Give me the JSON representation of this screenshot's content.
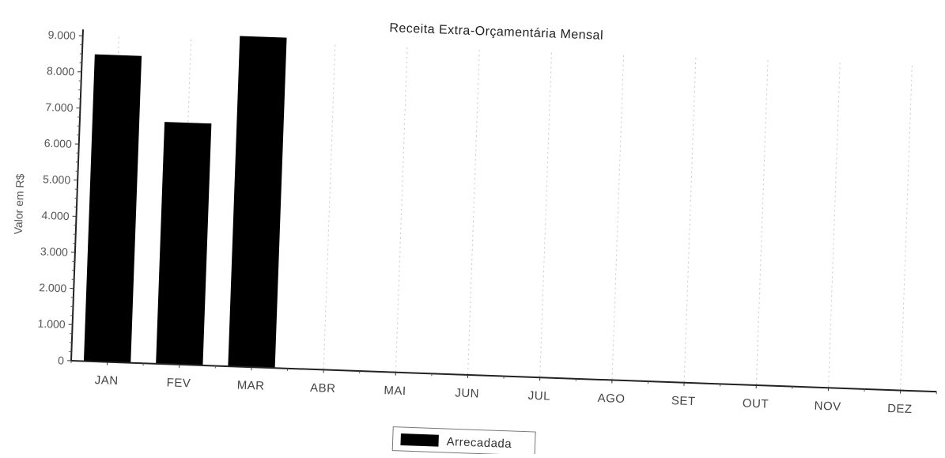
{
  "chart_data": {
    "type": "bar",
    "title": "Receita Extra-Orçamentária Mensal",
    "xlabel": "",
    "ylabel": "Valor em R$",
    "ylim": [
      0,
      9000
    ],
    "yticks": [
      "0",
      "1.000",
      "2.000",
      "3.000",
      "4.000",
      "5.000",
      "6.000",
      "7.000",
      "8.000",
      "9.000"
    ],
    "categories": [
      "JAN",
      "FEV",
      "MAR",
      "ABR",
      "MAI",
      "JUN",
      "JUL",
      "AGO",
      "SET",
      "OUT",
      "NOV",
      "DEZ"
    ],
    "series": [
      {
        "name": "Arrecadada",
        "color": "#000000",
        "values": [
          8500,
          6700,
          9150,
          0,
          0,
          0,
          0,
          0,
          0,
          0,
          0,
          0
        ]
      }
    ],
    "grid": "vertical-dotted",
    "legend_position": "bottom-center"
  }
}
